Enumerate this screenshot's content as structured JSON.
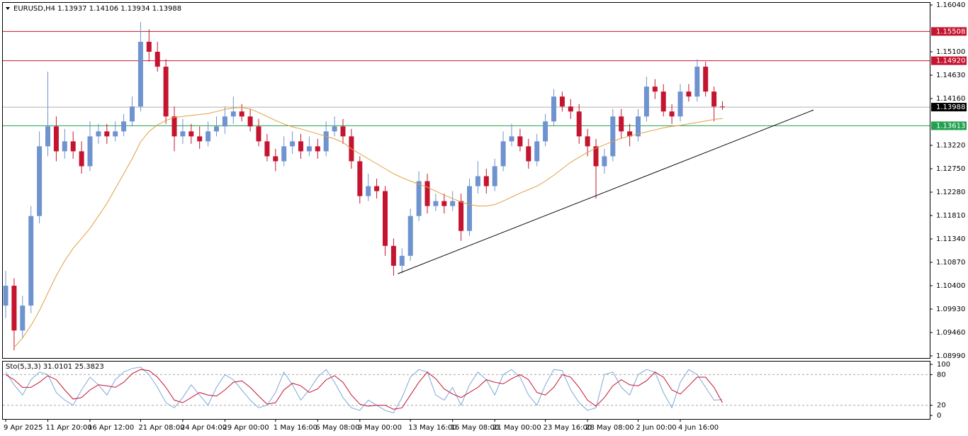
{
  "chart_data": [
    {
      "type": "candlestick",
      "title": "EURUSD,H4  1.13937 1.14106 1.13934 1.13988",
      "categories": [
        "9 Apr 2025",
        null,
        null,
        null,
        null,
        "11 Apr 20:00",
        null,
        null,
        null,
        null,
        "16 Apr 12:00",
        null,
        null,
        null,
        null,
        null,
        "21 Apr 08:00",
        null,
        null,
        null,
        null,
        "24 Apr 04:00",
        null,
        null,
        null,
        null,
        "29 Apr 00:00",
        null,
        null,
        null,
        null,
        null,
        "1 May 16:00",
        null,
        null,
        null,
        null,
        "6 May 08:00",
        null,
        null,
        null,
        null,
        "9 May 00:00",
        null,
        null,
        null,
        null,
        null,
        "13 May 16:00",
        null,
        null,
        null,
        null,
        "16 May 08:00",
        null,
        null,
        null,
        null,
        "21 May 00:00",
        null,
        null,
        null,
        null,
        null,
        "23 May 16:00",
        null,
        null,
        null,
        null,
        "28 May 08:00",
        null,
        null,
        null,
        null,
        null,
        "2 Jun 00:00",
        null,
        null,
        null,
        null,
        "4 Jun 16:00",
        null,
        null,
        null,
        null,
        null
      ],
      "open": [
        1.1,
        1.104,
        1.095,
        1.1,
        1.118,
        1.132,
        1.136,
        1.131,
        1.133,
        1.131,
        1.128,
        1.134,
        1.135,
        1.134,
        1.135,
        1.137,
        1.14,
        1.153,
        1.151,
        1.148,
        1.138,
        1.134,
        1.135,
        1.134,
        1.133,
        1.135,
        1.136,
        1.138,
        1.139,
        1.138,
        1.136,
        1.133,
        1.13,
        1.129,
        1.132,
        1.133,
        1.131,
        1.132,
        1.131,
        1.135,
        1.136,
        1.134,
        1.129,
        1.122,
        1.124,
        1.123,
        1.112,
        1.108,
        1.11,
        1.118,
        1.125,
        1.12,
        1.121,
        1.12,
        1.121,
        1.115,
        1.124,
        1.126,
        1.124,
        1.128,
        1.133,
        1.134,
        1.132,
        1.129,
        1.133,
        1.137,
        1.142,
        1.14,
        1.139,
        1.134,
        1.132,
        1.128,
        1.13,
        1.138,
        1.135,
        1.134,
        1.138,
        1.144,
        1.143,
        1.139,
        1.138,
        1.143,
        1.142,
        1.148,
        1.143,
        1.14
      ],
      "high": [
        1.107,
        1.1055,
        1.102,
        1.12,
        1.135,
        1.147,
        1.138,
        1.1355,
        1.135,
        1.133,
        1.137,
        1.1365,
        1.1365,
        1.137,
        1.1385,
        1.142,
        1.157,
        1.1555,
        1.153,
        1.1495,
        1.14,
        1.1375,
        1.1365,
        1.136,
        1.137,
        1.138,
        1.14,
        1.142,
        1.1405,
        1.1395,
        1.1375,
        1.1345,
        1.1315,
        1.134,
        1.135,
        1.1345,
        1.134,
        1.1335,
        1.137,
        1.138,
        1.1375,
        1.1355,
        1.13,
        1.1265,
        1.1255,
        1.124,
        1.1135,
        1.1115,
        1.1195,
        1.127,
        1.1265,
        1.1225,
        1.1225,
        1.123,
        1.1225,
        1.1255,
        1.129,
        1.1275,
        1.1295,
        1.135,
        1.1365,
        1.1355,
        1.1335,
        1.1345,
        1.1385,
        1.1435,
        1.143,
        1.1415,
        1.1405,
        1.1355,
        1.1335,
        1.1315,
        1.1395,
        1.1395,
        1.1365,
        1.1395,
        1.146,
        1.1455,
        1.1445,
        1.1405,
        1.1445,
        1.1445,
        1.1495,
        1.149,
        1.144,
        1.14106
      ],
      "low": [
        1.0975,
        1.091,
        1.0935,
        1.0985,
        1.1165,
        1.13,
        1.129,
        1.1295,
        1.1295,
        1.1265,
        1.127,
        1.1325,
        1.1325,
        1.133,
        1.134,
        1.136,
        1.139,
        1.149,
        1.147,
        1.1365,
        1.131,
        1.1325,
        1.1325,
        1.1315,
        1.132,
        1.134,
        1.1345,
        1.1365,
        1.137,
        1.135,
        1.132,
        1.129,
        1.127,
        1.128,
        1.1305,
        1.1295,
        1.13,
        1.1295,
        1.13,
        1.134,
        1.1325,
        1.1275,
        1.1205,
        1.121,
        1.1215,
        1.11,
        1.106,
        1.1065,
        1.109,
        1.117,
        1.1185,
        1.119,
        1.1185,
        1.119,
        1.113,
        1.114,
        1.1225,
        1.1225,
        1.123,
        1.127,
        1.132,
        1.131,
        1.1275,
        1.128,
        1.132,
        1.136,
        1.139,
        1.1375,
        1.1325,
        1.13,
        1.1215,
        1.1265,
        1.129,
        1.1335,
        1.132,
        1.133,
        1.137,
        1.1415,
        1.138,
        1.1365,
        1.137,
        1.141,
        1.141,
        1.142,
        1.137,
        1.13934
      ],
      "close": [
        1.104,
        1.095,
        1.1,
        1.118,
        1.132,
        1.136,
        1.131,
        1.133,
        1.131,
        1.128,
        1.134,
        1.135,
        1.134,
        1.135,
        1.137,
        1.14,
        1.153,
        1.151,
        1.148,
        1.138,
        1.134,
        1.135,
        1.134,
        1.133,
        1.135,
        1.136,
        1.138,
        1.139,
        1.138,
        1.136,
        1.133,
        1.13,
        1.129,
        1.132,
        1.133,
        1.131,
        1.132,
        1.131,
        1.135,
        1.136,
        1.134,
        1.129,
        1.122,
        1.124,
        1.123,
        1.112,
        1.108,
        1.11,
        1.118,
        1.125,
        1.12,
        1.121,
        1.12,
        1.121,
        1.115,
        1.124,
        1.126,
        1.124,
        1.128,
        1.133,
        1.134,
        1.132,
        1.129,
        1.133,
        1.137,
        1.142,
        1.14,
        1.139,
        1.134,
        1.132,
        1.128,
        1.13,
        1.138,
        1.135,
        1.134,
        1.138,
        1.144,
        1.143,
        1.139,
        1.138,
        1.143,
        1.142,
        1.148,
        1.143,
        1.14,
        1.13988
      ],
      "up_color": "#6f93cf",
      "down_color": "#c4142f",
      "series": [
        {
          "color": "#e0a040",
          "values": [
            null,
            1.0916,
            1.0935,
            1.096,
            1.099,
            1.1025,
            1.106,
            1.109,
            1.1115,
            1.1135,
            1.1155,
            1.118,
            1.1205,
            1.1235,
            1.1265,
            1.1295,
            1.1329,
            1.135,
            1.1363,
            1.1372,
            1.1378,
            1.138,
            1.1382,
            1.1384,
            1.1386,
            1.139,
            1.1394,
            1.1397,
            1.1398,
            1.1395,
            1.1388,
            1.138,
            1.1372,
            1.1365,
            1.1359,
            1.1355,
            1.135,
            1.1345,
            1.134,
            1.1335,
            1.1328,
            1.1315,
            1.1305,
            1.1295,
            1.1285,
            1.1275,
            1.1265,
            1.1257,
            1.125,
            1.1244,
            1.1238,
            1.123,
            1.1222,
            1.1215,
            1.1208,
            1.1203,
            1.12,
            1.12,
            1.1203,
            1.121,
            1.1218,
            1.1226,
            1.1233,
            1.124,
            1.125,
            1.1262,
            1.1275,
            1.1288,
            1.1298,
            1.1308,
            1.1316,
            1.1323,
            1.133,
            1.1336,
            1.1341,
            1.1345,
            1.1349,
            1.1353,
            1.1357,
            1.136,
            1.1362,
            1.1365,
            1.1368,
            1.1371,
            1.1374,
            1.1376
          ]
        }
      ],
      "hlines": [
        {
          "value": 1.15508,
          "label": "1.15508",
          "color": "#c4142f"
        },
        {
          "value": 1.1492,
          "label": "1.14920",
          "color": "#c4142f"
        },
        {
          "value": 1.13988,
          "label": "1.13988",
          "color": "#000000",
          "line_color": "#b0b0b0"
        },
        {
          "value": 1.13613,
          "label": "1.13613",
          "color": "#22a050"
        }
      ],
      "trendline": {
        "x": [
          46.5,
          95.8
        ],
        "y": [
          1.1064,
          1.1393
        ],
        "color": "#000000"
      },
      "ylim": [
        1.08947,
        1.16097
      ],
      "yticks": [
        {
          "value": 1.1604,
          "label": "1.16040"
        },
        {
          "value": 1.151,
          "label": "1.15100"
        },
        {
          "value": 1.1463,
          "label": "1.14630"
        },
        {
          "value": 1.1416,
          "label": "1.14160"
        },
        {
          "value": 1.1322,
          "label": "1.13220"
        },
        {
          "value": 1.1275,
          "label": "1.12750"
        },
        {
          "value": 1.1228,
          "label": "1.12280"
        },
        {
          "value": 1.1181,
          "label": "1.11810"
        },
        {
          "value": 1.1134,
          "label": "1.11340"
        },
        {
          "value": 1.1087,
          "label": "1.10870"
        },
        {
          "value": 1.104,
          "label": "1.10400"
        },
        {
          "value": 1.0993,
          "label": "1.09930"
        },
        {
          "value": 1.0946,
          "label": "1.09460"
        },
        {
          "value": 1.0899,
          "label": "1.08990"
        }
      ]
    },
    {
      "type": "line",
      "title": "Sto(5,3,3) 31.0101 25.3823",
      "series": [
        {
          "color": "#7fa7d8",
          "values": [
            85,
            60,
            40,
            70,
            85,
            80,
            45,
            30,
            20,
            50,
            75,
            60,
            40,
            70,
            85,
            92,
            95,
            80,
            55,
            25,
            15,
            35,
            60,
            40,
            20,
            55,
            80,
            70,
            50,
            30,
            15,
            20,
            45,
            85,
            60,
            30,
            50,
            75,
            90,
            65,
            35,
            15,
            10,
            30,
            20,
            10,
            5,
            35,
            75,
            90,
            85,
            40,
            30,
            55,
            20,
            60,
            85,
            70,
            40,
            80,
            90,
            75,
            40,
            20,
            60,
            90,
            88,
            50,
            25,
            10,
            15,
            80,
            85,
            55,
            40,
            80,
            90,
            85,
            45,
            15,
            65,
            90,
            80,
            55,
            30,
            31
          ]
        },
        {
          "color": "#c4142f",
          "values": [
            80,
            70,
            55,
            55,
            65,
            78,
            70,
            50,
            32,
            35,
            50,
            60,
            58,
            55,
            65,
            82,
            90,
            88,
            75,
            55,
            30,
            25,
            35,
            45,
            40,
            38,
            50,
            65,
            68,
            55,
            38,
            22,
            25,
            50,
            63,
            58,
            45,
            52,
            70,
            78,
            65,
            40,
            22,
            18,
            20,
            20,
            12,
            15,
            40,
            65,
            85,
            72,
            52,
            42,
            35,
            45,
            55,
            70,
            65,
            62,
            72,
            80,
            70,
            45,
            40,
            55,
            80,
            75,
            55,
            30,
            18,
            35,
            58,
            70,
            60,
            58,
            68,
            85,
            75,
            50,
            42,
            58,
            75,
            75,
            55,
            25
          ]
        }
      ],
      "ylim": [
        -7,
        107
      ],
      "yticks": [
        0,
        20,
        80,
        100
      ],
      "levels": [
        20,
        80
      ]
    }
  ]
}
